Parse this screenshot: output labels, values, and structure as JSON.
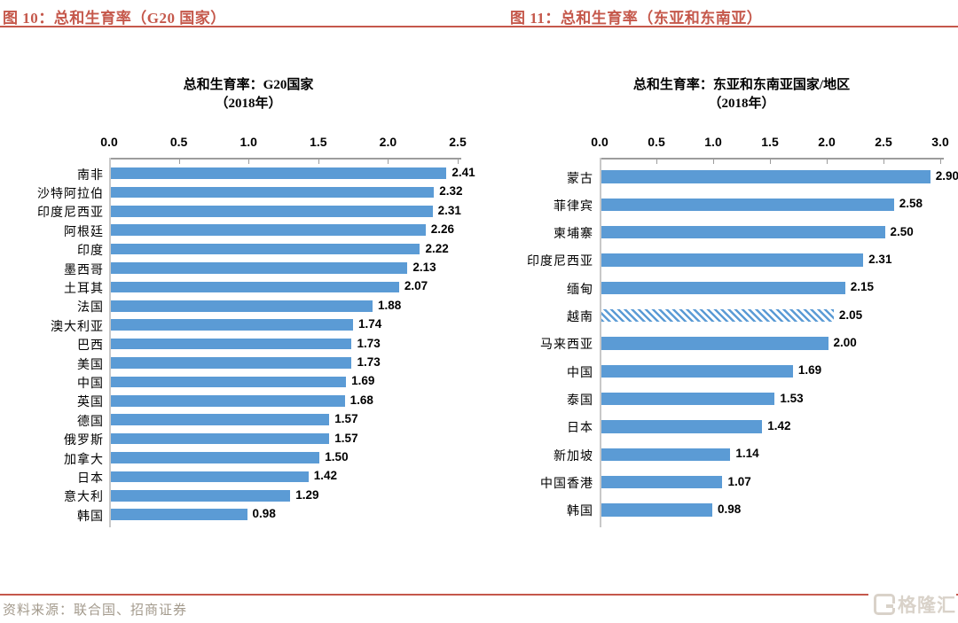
{
  "header": {
    "fig_left": {
      "label": "图 10：",
      "title": "总和生育率（G20 国家）"
    },
    "fig_right": {
      "label": "图 11：",
      "title": "总和生育率（东亚和东南亚）"
    }
  },
  "footer": {
    "source": "资料来源：联合国、招商证券",
    "logo_text": "格隆汇"
  },
  "colors": {
    "accent": "#C5584B",
    "bar_blue": "#5B9BD5",
    "axis_gray": "#9C9C9C",
    "source_text": "#A39A8C",
    "logo_gray": "#D9D2C9"
  },
  "chart_data": [
    {
      "type": "bar",
      "orientation": "horizontal",
      "title": "总和生育率：G20国家",
      "subtitle": "（2018年）",
      "x_ticks": [
        "0.0",
        "0.5",
        "1.0",
        "1.5",
        "2.0",
        "2.5"
      ],
      "xlim": [
        0,
        2.5
      ],
      "grid": false,
      "legend": "none",
      "categories": [
        "南非",
        "沙特阿拉伯",
        "印度尼西亚",
        "阿根廷",
        "印度",
        "墨西哥",
        "土耳其",
        "法国",
        "澳大利亚",
        "巴西",
        "美国",
        "中国",
        "英国",
        "德国",
        "俄罗斯",
        "加拿大",
        "日本",
        "意大利",
        "韩国"
      ],
      "values": [
        2.41,
        2.32,
        2.31,
        2.26,
        2.22,
        2.13,
        2.07,
        1.88,
        1.74,
        1.73,
        1.73,
        1.69,
        1.68,
        1.57,
        1.57,
        1.5,
        1.42,
        1.29,
        0.98
      ],
      "hatched_index": null
    },
    {
      "type": "bar",
      "orientation": "horizontal",
      "title": "总和生育率：东亚和东南亚国家/地区",
      "subtitle": "（2018年）",
      "x_ticks": [
        "0.0",
        "0.5",
        "1.0",
        "1.5",
        "2.0",
        "2.5",
        "3.0"
      ],
      "xlim": [
        0,
        3.0
      ],
      "grid": false,
      "legend": "none",
      "categories": [
        "蒙古",
        "菲律宾",
        "柬埔寨",
        "印度尼西亚",
        "缅甸",
        "越南",
        "马来西亚",
        "中国",
        "泰国",
        "日本",
        "新加坡",
        "中国香港",
        "韩国"
      ],
      "values": [
        2.9,
        2.58,
        2.5,
        2.31,
        2.15,
        2.05,
        2.0,
        1.69,
        1.53,
        1.42,
        1.14,
        1.07,
        0.98
      ],
      "hatched_index": 5
    }
  ]
}
